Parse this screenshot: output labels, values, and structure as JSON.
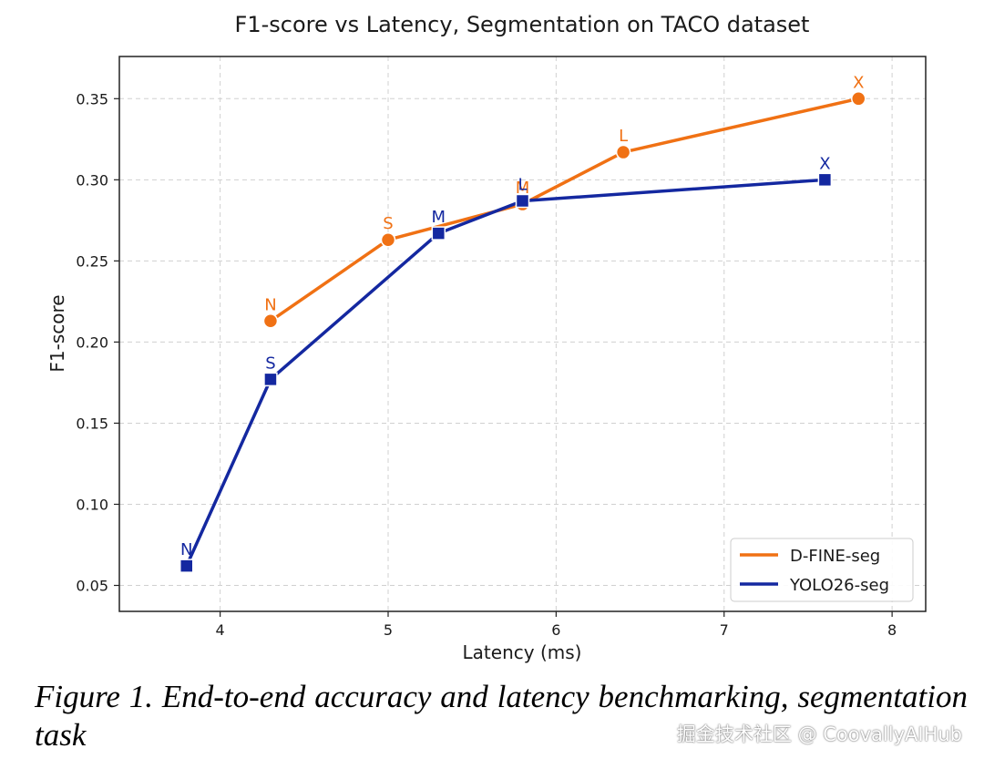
{
  "chart_data": {
    "type": "line",
    "title": "F1-score vs Latency, Segmentation on TACO dataset",
    "xlabel": "Latency (ms)",
    "ylabel": "F1-score",
    "xlim": [
      3.4,
      8.2
    ],
    "ylim": [
      0.034,
      0.376
    ],
    "xticks": [
      4,
      5,
      6,
      7,
      8
    ],
    "yticks": [
      0.05,
      0.1,
      0.15,
      0.2,
      0.25,
      0.3,
      0.35
    ],
    "grid": true,
    "legend_position": "bottom-right",
    "series": [
      {
        "name": "D-FINE-seg",
        "color": "#f07114",
        "marker": "circle",
        "points": [
          {
            "x": 4.3,
            "y": 0.213,
            "label": "N"
          },
          {
            "x": 5.0,
            "y": 0.263,
            "label": "S"
          },
          {
            "x": 5.8,
            "y": 0.285,
            "label": "M"
          },
          {
            "x": 6.4,
            "y": 0.317,
            "label": "L"
          },
          {
            "x": 7.8,
            "y": 0.35,
            "label": "X"
          }
        ]
      },
      {
        "name": "YOLO26-seg",
        "color": "#1428a0",
        "marker": "square",
        "points": [
          {
            "x": 3.8,
            "y": 0.062,
            "label": "N"
          },
          {
            "x": 4.3,
            "y": 0.177,
            "label": "S"
          },
          {
            "x": 5.3,
            "y": 0.267,
            "label": "M"
          },
          {
            "x": 5.8,
            "y": 0.287,
            "label": "L"
          },
          {
            "x": 7.6,
            "y": 0.3,
            "label": "X"
          }
        ]
      }
    ]
  },
  "caption": "Figure 1. End-to-end accuracy and latency benchmarking, segmentation task",
  "watermark": "掘金技术社区 @ CoovallyAIHub"
}
